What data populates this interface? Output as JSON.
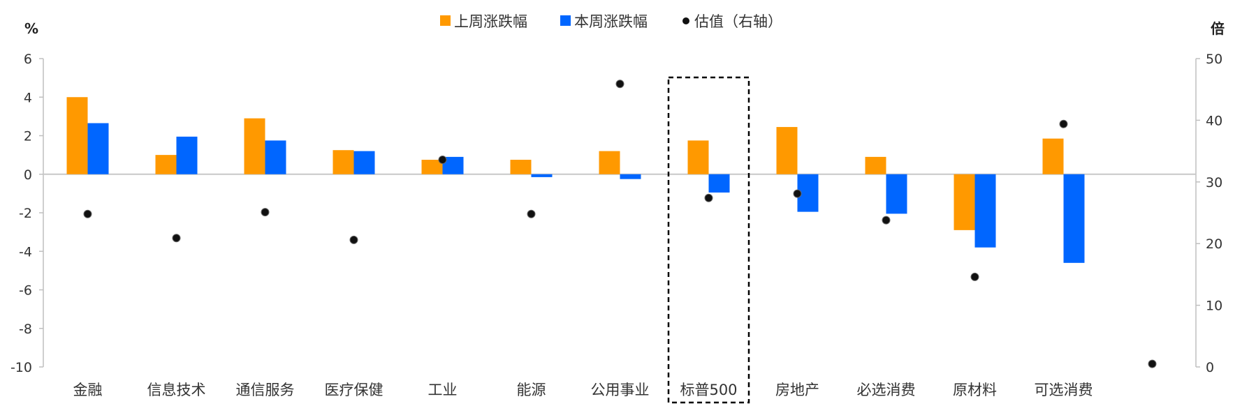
{
  "chart_data": {
    "type": "bar",
    "categories": [
      "金融",
      "信息技术",
      "通信服务",
      "医疗保健",
      "工业",
      "能源",
      "公用事业",
      "标普500",
      "房地产",
      "必选消费",
      "原材料",
      "可选消费",
      ""
    ],
    "series": [
      {
        "name": "上周涨跌幅",
        "axis": "left",
        "color": "#FF9900",
        "values": [
          4.0,
          1.0,
          2.9,
          1.25,
          0.75,
          0.75,
          1.2,
          1.75,
          2.45,
          0.9,
          -2.9,
          1.85,
          null
        ]
      },
      {
        "name": "本周涨跌幅",
        "axis": "left",
        "color": "#0066FF",
        "values": [
          2.65,
          1.95,
          1.75,
          1.2,
          0.9,
          -0.15,
          -0.25,
          -0.95,
          -1.95,
          -2.05,
          -3.8,
          -4.6,
          null
        ]
      },
      {
        "name": "估值（右轴）",
        "axis": "right",
        "type": "scatter",
        "color": "#000000",
        "values": [
          24.8,
          20.9,
          25.1,
          20.6,
          33.6,
          24.8,
          45.9,
          27.4,
          28.1,
          23.8,
          14.6,
          39.4,
          0.5
        ]
      }
    ],
    "y_left": {
      "unit": "%",
      "min": -10,
      "max": 6,
      "ticks": [
        6,
        4,
        2,
        0,
        -2,
        -4,
        -6,
        -8,
        -10
      ]
    },
    "y_right": {
      "unit": "倍",
      "min": 0,
      "max": 50,
      "ticks": [
        50,
        40,
        30,
        20,
        10,
        0
      ]
    },
    "highlight_category": "标普500",
    "legend_position": "top-center",
    "grid": false
  }
}
